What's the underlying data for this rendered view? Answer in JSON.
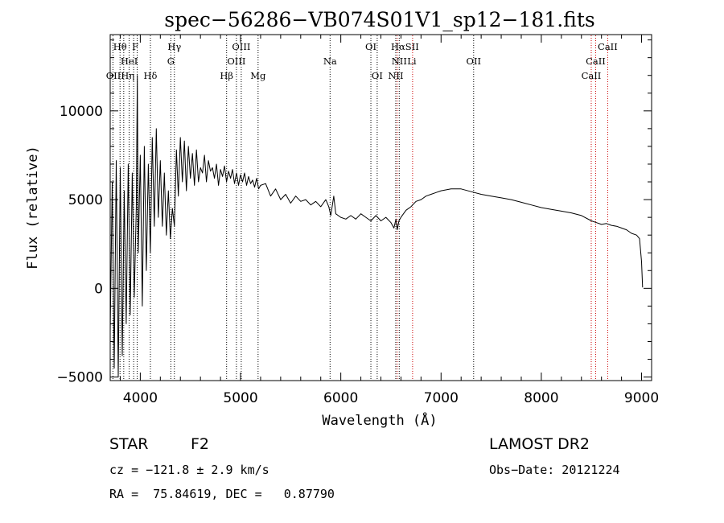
{
  "chart_data": {
    "type": "line",
    "title": "spec−56286−VB074S01V1_sp12−181.fits",
    "xlabel": "Wavelength (Å)",
    "ylabel": "Flux (relative)",
    "xlim": [
      3700,
      9100
    ],
    "ylim": [
      -5200,
      14300
    ],
    "x_ticks": [
      4000,
      5000,
      6000,
      7000,
      8000,
      9000
    ],
    "y_ticks": [
      -5000,
      0,
      5000,
      10000
    ],
    "x_tick_labels": [
      "4000",
      "5000",
      "6000",
      "7000",
      "8000",
      "9000"
    ],
    "y_tick_labels": [
      "−5000",
      "0",
      "5000",
      "10000"
    ],
    "grid": false,
    "series": [
      {
        "color": "#000000",
        "x": [
          3700,
          3720,
          3740,
          3760,
          3780,
          3800,
          3820,
          3840,
          3860,
          3880,
          3900,
          3920,
          3940,
          3960,
          3970,
          3980,
          4000,
          4020,
          4040,
          4060,
          4080,
          4100,
          4120,
          4140,
          4160,
          4180,
          4200,
          4220,
          4240,
          4260,
          4280,
          4300,
          4320,
          4340,
          4360,
          4380,
          4400,
          4420,
          4440,
          4460,
          4480,
          4500,
          4520,
          4540,
          4560,
          4580,
          4600,
          4620,
          4640,
          4660,
          4680,
          4700,
          4720,
          4740,
          4760,
          4780,
          4800,
          4820,
          4840,
          4860,
          4880,
          4900,
          4920,
          4940,
          4960,
          4980,
          5000,
          5020,
          5040,
          5060,
          5080,
          5100,
          5120,
          5140,
          5160,
          5180,
          5200,
          5250,
          5300,
          5350,
          5400,
          5450,
          5500,
          5550,
          5600,
          5650,
          5700,
          5750,
          5800,
          5850,
          5880,
          5900,
          5930,
          5950,
          6000,
          6050,
          6100,
          6150,
          6200,
          6250,
          6300,
          6350,
          6400,
          6450,
          6500,
          6530,
          6550,
          6563,
          6580,
          6600,
          6650,
          6700,
          6750,
          6800,
          6850,
          6900,
          6950,
          7000,
          7100,
          7200,
          7300,
          7400,
          7500,
          7600,
          7700,
          7800,
          7900,
          8000,
          8100,
          8200,
          8300,
          8400,
          8500,
          8550,
          8600,
          8650,
          8700,
          8750,
          8800,
          8850,
          8900,
          8950,
          8980,
          9000,
          9010
        ],
        "y": [
          -2500,
          6000,
          -4500,
          7200,
          -5000,
          6800,
          -3800,
          5500,
          -2000,
          7000,
          -1500,
          6500,
          -500,
          4500,
          12000,
          2000,
          7500,
          -1000,
          8000,
          1000,
          7000,
          2000,
          8500,
          3500,
          9000,
          4000,
          7200,
          3500,
          6500,
          3000,
          5500,
          2800,
          4500,
          3500,
          7800,
          5200,
          8500,
          6000,
          8300,
          5500,
          8000,
          6200,
          7600,
          5800,
          7800,
          6000,
          6800,
          6500,
          7500,
          6000,
          7200,
          6600,
          6800,
          6200,
          7000,
          5800,
          6700,
          6300,
          6900,
          6000,
          6600,
          6200,
          6700,
          5900,
          6500,
          5800,
          6400,
          6000,
          6500,
          5800,
          6300,
          5900,
          6100,
          5700,
          6200,
          5600,
          5800,
          5900,
          5200,
          5600,
          5000,
          5300,
          4800,
          5200,
          4900,
          5000,
          4700,
          4900,
          4600,
          5000,
          4600,
          4100,
          5200,
          4200,
          4000,
          3900,
          4100,
          3900,
          4200,
          4000,
          3800,
          4100,
          3800,
          4000,
          3700,
          3400,
          3900,
          3300,
          3800,
          4000,
          4400,
          4600,
          4900,
          5000,
          5200,
          5300,
          5400,
          5500,
          5600,
          5600,
          5450,
          5300,
          5200,
          5100,
          5000,
          4850,
          4700,
          4550,
          4450,
          4350,
          4250,
          4100,
          3800,
          3700,
          3600,
          3650,
          3550,
          3500,
          3400,
          3300,
          3100,
          3000,
          2800,
          1500,
          50
        ]
      }
    ],
    "line_markers": [
      {
        "label": "Hθ",
        "wavelength": 3798,
        "row": 0,
        "color": "#000000"
      },
      {
        "label": "F",
        "wavelength": 3950,
        "row": 0,
        "color": "#000000"
      },
      {
        "label": "Hγ",
        "wavelength": 4340,
        "row": 0,
        "color": "#000000"
      },
      {
        "label": "OIII",
        "wavelength": 5007,
        "row": 0,
        "color": "#000000"
      },
      {
        "label": "OI",
        "wavelength": 6300,
        "row": 0,
        "color": "#000000"
      },
      {
        "label": "HαSII",
        "wavelength": 6640,
        "row": 0,
        "color": "#000000"
      },
      {
        "label": "CaII",
        "wavelength": 8662,
        "row": 0,
        "color": "#000000"
      },
      {
        "label": "HeI",
        "wavelength": 3889,
        "row": 1,
        "color": "#000000"
      },
      {
        "label": "G",
        "wavelength": 4305,
        "row": 1,
        "color": "#000000"
      },
      {
        "label": "OIII",
        "wavelength": 4959,
        "row": 1,
        "color": "#000000"
      },
      {
        "label": "Na",
        "wavelength": 5893,
        "row": 1,
        "color": "#000000"
      },
      {
        "label": "NII",
        "wavelength": 6583,
        "row": 1,
        "color": "#000000"
      },
      {
        "label": "Li",
        "wavelength": 6708,
        "row": 1,
        "color": "#000000"
      },
      {
        "label": "OII",
        "wavelength": 7325,
        "row": 1,
        "color": "#000000"
      },
      {
        "label": "CaII",
        "wavelength": 8542,
        "row": 1,
        "color": "#000000"
      },
      {
        "label": "OIIHη",
        "wavelength": 3800,
        "row": 2,
        "color": "#000000"
      },
      {
        "label": "Hδ",
        "wavelength": 4101,
        "row": 2,
        "color": "#000000"
      },
      {
        "label": "Hβ",
        "wavelength": 4861,
        "row": 2,
        "color": "#000000"
      },
      {
        "label": "Mg",
        "wavelength": 5175,
        "row": 2,
        "color": "#000000"
      },
      {
        "label": "OI",
        "wavelength": 6363,
        "row": 2,
        "color": "#000000"
      },
      {
        "label": "NII",
        "wavelength": 6548,
        "row": 2,
        "color": "#000000"
      },
      {
        "label": "CaII",
        "wavelength": 8498,
        "row": 2,
        "color": "#000000"
      }
    ],
    "marker_lines": [
      {
        "wavelength": 3727,
        "color": "#000000"
      },
      {
        "wavelength": 3798,
        "color": "#000000"
      },
      {
        "wavelength": 3835,
        "color": "#000000"
      },
      {
        "wavelength": 3889,
        "color": "#000000"
      },
      {
        "wavelength": 3934,
        "color": "#000000"
      },
      {
        "wavelength": 3969,
        "color": "#000000"
      },
      {
        "wavelength": 4101,
        "color": "#000000"
      },
      {
        "wavelength": 4305,
        "color": "#000000"
      },
      {
        "wavelength": 4340,
        "color": "#000000"
      },
      {
        "wavelength": 4861,
        "color": "#000000"
      },
      {
        "wavelength": 4959,
        "color": "#000000"
      },
      {
        "wavelength": 5007,
        "color": "#000000"
      },
      {
        "wavelength": 5175,
        "color": "#000000"
      },
      {
        "wavelength": 5893,
        "color": "#000000"
      },
      {
        "wavelength": 6300,
        "color": "#000000"
      },
      {
        "wavelength": 6363,
        "color": "#000000"
      },
      {
        "wavelength": 6548,
        "color": "#000000"
      },
      {
        "wavelength": 6563,
        "color": "#cc0000"
      },
      {
        "wavelength": 6583,
        "color": "#000000"
      },
      {
        "wavelength": 6716,
        "color": "#cc0000"
      },
      {
        "wavelength": 7325,
        "color": "#000000"
      },
      {
        "wavelength": 8498,
        "color": "#cc0000"
      },
      {
        "wavelength": 8542,
        "color": "#cc0000"
      },
      {
        "wavelength": 8662,
        "color": "#cc0000"
      }
    ]
  },
  "info": {
    "class": "STAR",
    "subclass": "F2",
    "survey": "LAMOST DR2",
    "redshift": "cz = −121.8 ± 2.9 km/s",
    "obs_date": "Obs−Date: 20121224",
    "coords": "RA =  75.84619, DEC =   0.87790"
  }
}
